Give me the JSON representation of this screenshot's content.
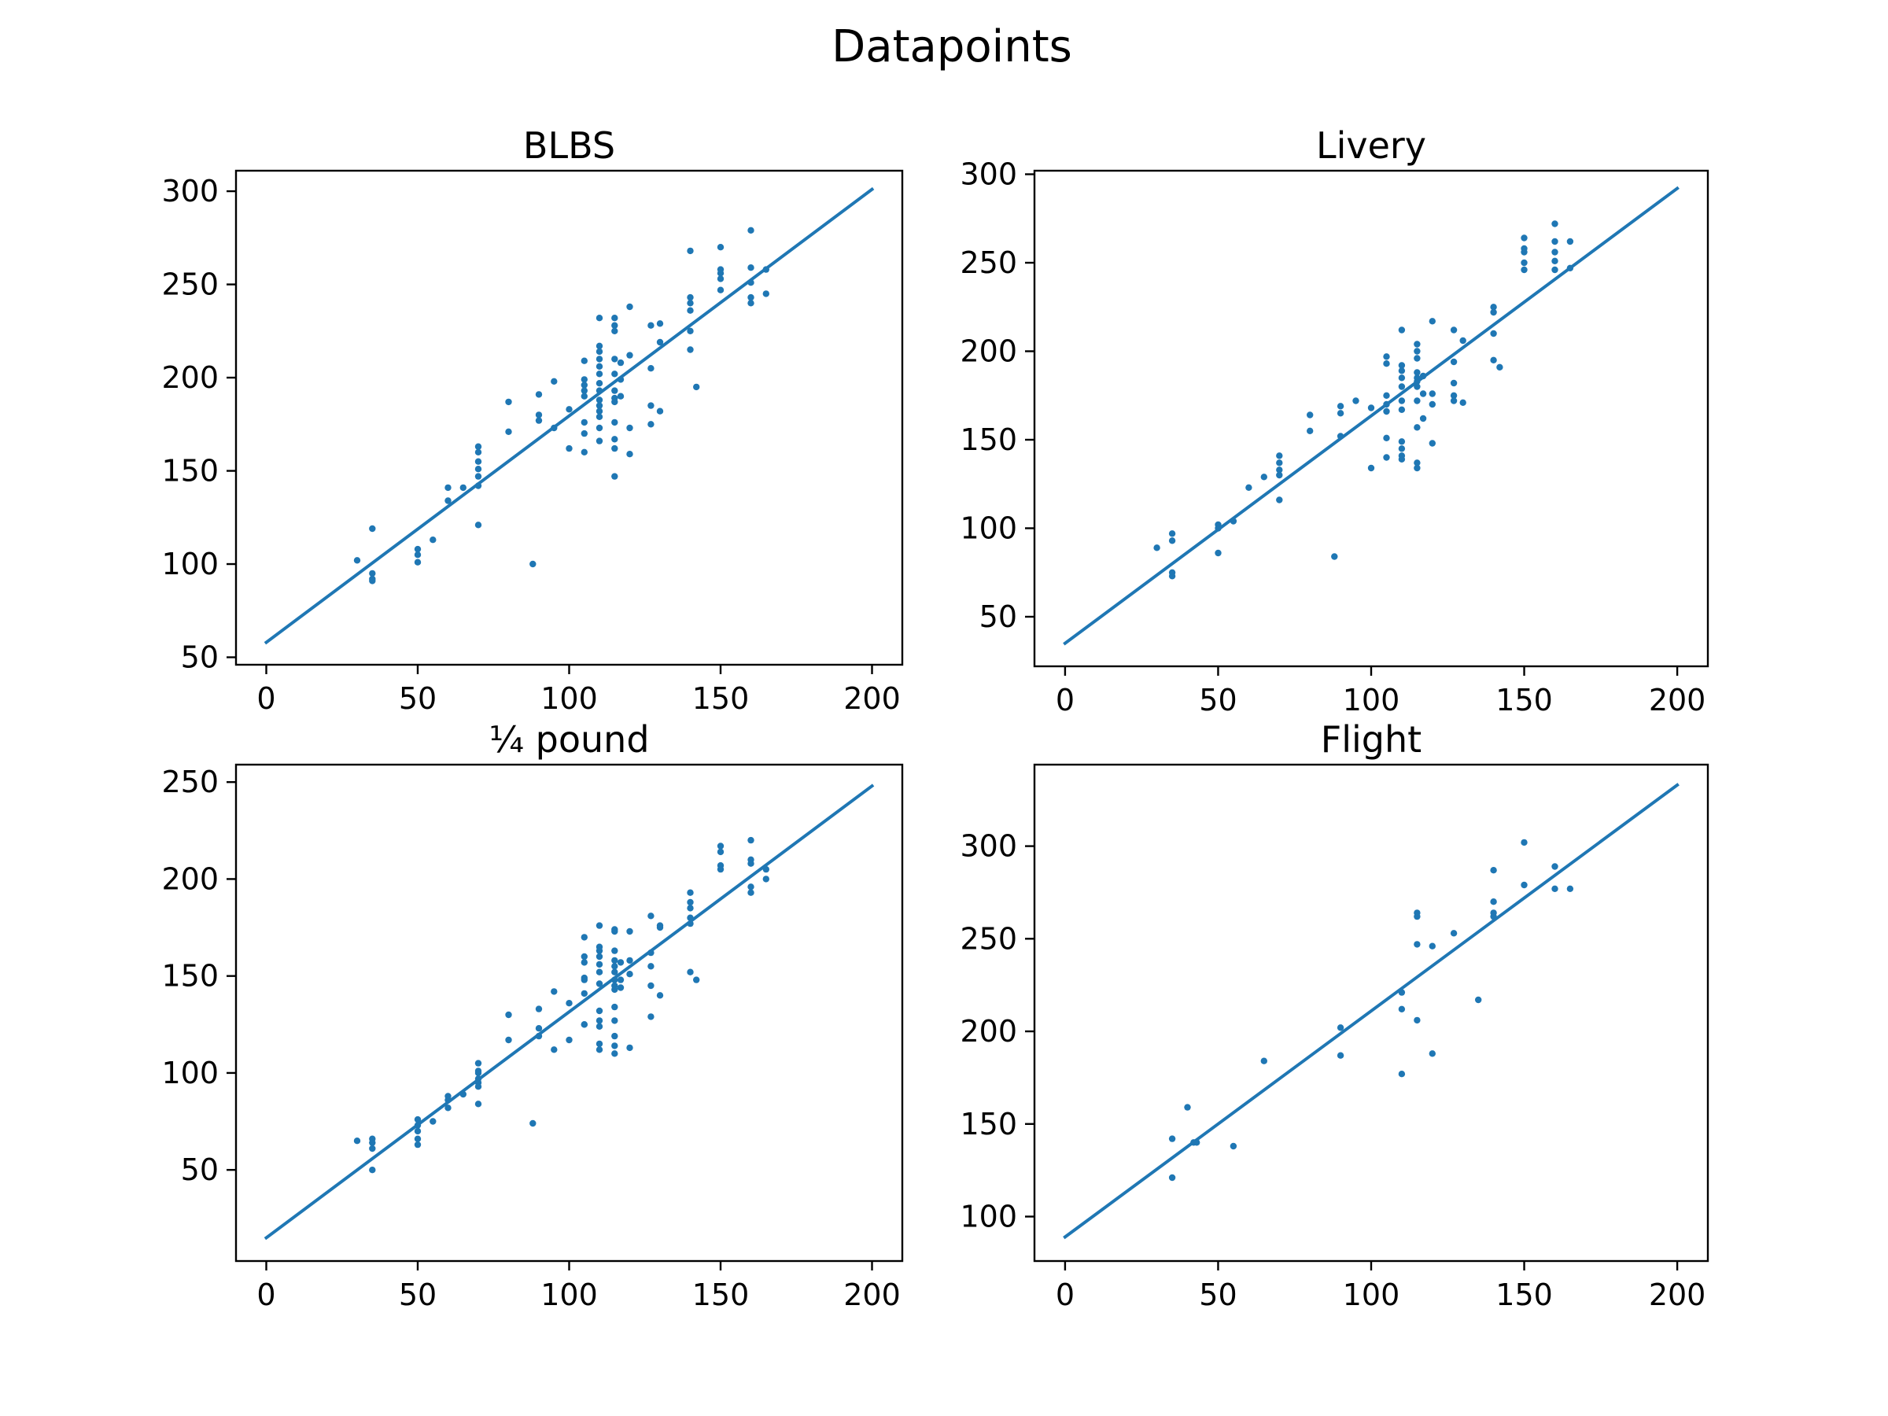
{
  "figure": {
    "title": "Datapoints",
    "marker_color": "#1f77b4",
    "line_color": "#1f77b4"
  },
  "chart_data": [
    {
      "type": "scatter",
      "title": "BLBS",
      "xlabel": "",
      "ylabel": "",
      "xlim": [
        -10,
        210
      ],
      "ylim": [
        46,
        311
      ],
      "xticks": [
        0,
        50,
        100,
        150,
        200
      ],
      "yticks": [
        50,
        100,
        150,
        200,
        250,
        300
      ],
      "grid": false,
      "fit_line": {
        "x": [
          0,
          200
        ],
        "y": [
          58,
          301
        ]
      },
      "points": [
        [
          30,
          102
        ],
        [
          35,
          119
        ],
        [
          35,
          95
        ],
        [
          35,
          92
        ],
        [
          35,
          91
        ],
        [
          50,
          108
        ],
        [
          50,
          105
        ],
        [
          50,
          101
        ],
        [
          55,
          113
        ],
        [
          60,
          141
        ],
        [
          60,
          134
        ],
        [
          65,
          141
        ],
        [
          70,
          163
        ],
        [
          70,
          160
        ],
        [
          70,
          155
        ],
        [
          70,
          151
        ],
        [
          70,
          147
        ],
        [
          70,
          142
        ],
        [
          70,
          121
        ],
        [
          80,
          187
        ],
        [
          80,
          171
        ],
        [
          88,
          100
        ],
        [
          90,
          191
        ],
        [
          90,
          180
        ],
        [
          90,
          177
        ],
        [
          95,
          198
        ],
        [
          95,
          173
        ],
        [
          100,
          183
        ],
        [
          100,
          162
        ],
        [
          105,
          209
        ],
        [
          105,
          199
        ],
        [
          105,
          196
        ],
        [
          105,
          193
        ],
        [
          105,
          190
        ],
        [
          105,
          176
        ],
        [
          105,
          170
        ],
        [
          105,
          160
        ],
        [
          110,
          232
        ],
        [
          110,
          217
        ],
        [
          110,
          214
        ],
        [
          110,
          210
        ],
        [
          110,
          206
        ],
        [
          110,
          202
        ],
        [
          110,
          197
        ],
        [
          110,
          193
        ],
        [
          110,
          188
        ],
        [
          110,
          185
        ],
        [
          110,
          182
        ],
        [
          110,
          179
        ],
        [
          110,
          173
        ],
        [
          110,
          166
        ],
        [
          115,
          232
        ],
        [
          115,
          228
        ],
        [
          115,
          225
        ],
        [
          115,
          210
        ],
        [
          115,
          202
        ],
        [
          115,
          193
        ],
        [
          115,
          189
        ],
        [
          115,
          187
        ],
        [
          115,
          176
        ],
        [
          115,
          167
        ],
        [
          115,
          162
        ],
        [
          115,
          147
        ],
        [
          117,
          208
        ],
        [
          117,
          199
        ],
        [
          117,
          190
        ],
        [
          120,
          238
        ],
        [
          120,
          212
        ],
        [
          120,
          173
        ],
        [
          120,
          159
        ],
        [
          127,
          228
        ],
        [
          127,
          205
        ],
        [
          127,
          185
        ],
        [
          127,
          175
        ],
        [
          130,
          229
        ],
        [
          130,
          219
        ],
        [
          130,
          182
        ],
        [
          140,
          268
        ],
        [
          140,
          243
        ],
        [
          140,
          240
        ],
        [
          140,
          236
        ],
        [
          140,
          225
        ],
        [
          140,
          215
        ],
        [
          142,
          195
        ],
        [
          150,
          270
        ],
        [
          150,
          258
        ],
        [
          150,
          256
        ],
        [
          150,
          253
        ],
        [
          150,
          247
        ],
        [
          160,
          279
        ],
        [
          160,
          259
        ],
        [
          160,
          251
        ],
        [
          160,
          243
        ],
        [
          160,
          240
        ],
        [
          165,
          258
        ],
        [
          165,
          245
        ]
      ]
    },
    {
      "type": "scatter",
      "title": "Livery",
      "xlabel": "",
      "ylabel": "",
      "xlim": [
        -10,
        210
      ],
      "ylim": [
        22,
        302
      ],
      "xticks": [
        0,
        50,
        100,
        150,
        200
      ],
      "yticks": [
        50,
        100,
        150,
        200,
        250,
        300
      ],
      "grid": false,
      "fit_line": {
        "x": [
          0,
          200
        ],
        "y": [
          35,
          292
        ]
      },
      "points": [
        [
          30,
          89
        ],
        [
          35,
          97
        ],
        [
          35,
          93
        ],
        [
          35,
          75
        ],
        [
          35,
          73
        ],
        [
          50,
          102
        ],
        [
          50,
          100
        ],
        [
          50,
          86
        ],
        [
          55,
          104
        ],
        [
          60,
          123
        ],
        [
          65,
          129
        ],
        [
          70,
          141
        ],
        [
          70,
          137
        ],
        [
          70,
          133
        ],
        [
          70,
          130
        ],
        [
          70,
          116
        ],
        [
          80,
          164
        ],
        [
          80,
          155
        ],
        [
          88,
          84
        ],
        [
          90,
          169
        ],
        [
          90,
          165
        ],
        [
          90,
          152
        ],
        [
          95,
          172
        ],
        [
          100,
          168
        ],
        [
          100,
          134
        ],
        [
          105,
          197
        ],
        [
          105,
          193
        ],
        [
          105,
          175
        ],
        [
          105,
          170
        ],
        [
          105,
          166
        ],
        [
          105,
          151
        ],
        [
          105,
          140
        ],
        [
          110,
          212
        ],
        [
          110,
          192
        ],
        [
          110,
          189
        ],
        [
          110,
          185
        ],
        [
          110,
          180
        ],
        [
          110,
          172
        ],
        [
          110,
          167
        ],
        [
          110,
          149
        ],
        [
          110,
          145
        ],
        [
          110,
          141
        ],
        [
          110,
          139
        ],
        [
          115,
          204
        ],
        [
          115,
          200
        ],
        [
          115,
          196
        ],
        [
          115,
          188
        ],
        [
          115,
          185
        ],
        [
          115,
          183
        ],
        [
          115,
          180
        ],
        [
          115,
          172
        ],
        [
          115,
          157
        ],
        [
          115,
          137
        ],
        [
          115,
          134
        ],
        [
          117,
          186
        ],
        [
          117,
          176
        ],
        [
          117,
          162
        ],
        [
          120,
          217
        ],
        [
          120,
          176
        ],
        [
          120,
          170
        ],
        [
          120,
          148
        ],
        [
          127,
          212
        ],
        [
          127,
          194
        ],
        [
          127,
          182
        ],
        [
          127,
          175
        ],
        [
          127,
          172
        ],
        [
          130,
          206
        ],
        [
          130,
          171
        ],
        [
          140,
          225
        ],
        [
          140,
          222
        ],
        [
          140,
          210
        ],
        [
          140,
          195
        ],
        [
          142,
          191
        ],
        [
          150,
          264
        ],
        [
          150,
          258
        ],
        [
          150,
          256
        ],
        [
          150,
          250
        ],
        [
          150,
          246
        ],
        [
          160,
          272
        ],
        [
          160,
          262
        ],
        [
          160,
          256
        ],
        [
          160,
          251
        ],
        [
          160,
          246
        ],
        [
          165,
          262
        ],
        [
          165,
          247
        ]
      ]
    },
    {
      "type": "scatter",
      "title": "¼ pound",
      "xlabel": "",
      "ylabel": "",
      "xlim": [
        -10,
        210
      ],
      "ylim": [
        3,
        259
      ],
      "xticks": [
        0,
        50,
        100,
        150,
        200
      ],
      "yticks": [
        50,
        100,
        150,
        200,
        250
      ],
      "grid": false,
      "fit_line": {
        "x": [
          0,
          200
        ],
        "y": [
          15,
          248
        ]
      },
      "points": [
        [
          30,
          65
        ],
        [
          35,
          66
        ],
        [
          35,
          64
        ],
        [
          35,
          61
        ],
        [
          35,
          50
        ],
        [
          50,
          76
        ],
        [
          50,
          73
        ],
        [
          50,
          70
        ],
        [
          50,
          66
        ],
        [
          50,
          63
        ],
        [
          55,
          75
        ],
        [
          60,
          88
        ],
        [
          60,
          86
        ],
        [
          60,
          82
        ],
        [
          65,
          89
        ],
        [
          70,
          105
        ],
        [
          70,
          101
        ],
        [
          70,
          100
        ],
        [
          70,
          97
        ],
        [
          70,
          95
        ],
        [
          70,
          93
        ],
        [
          70,
          84
        ],
        [
          80,
          130
        ],
        [
          80,
          117
        ],
        [
          88,
          74
        ],
        [
          90,
          133
        ],
        [
          90,
          123
        ],
        [
          90,
          119
        ],
        [
          95,
          142
        ],
        [
          95,
          112
        ],
        [
          100,
          136
        ],
        [
          100,
          117
        ],
        [
          105,
          170
        ],
        [
          105,
          160
        ],
        [
          105,
          157
        ],
        [
          105,
          149
        ],
        [
          105,
          148
        ],
        [
          105,
          141
        ],
        [
          105,
          125
        ],
        [
          105,
          125
        ],
        [
          110,
          176
        ],
        [
          110,
          165
        ],
        [
          110,
          163
        ],
        [
          110,
          160
        ],
        [
          110,
          156
        ],
        [
          110,
          152
        ],
        [
          110,
          146
        ],
        [
          110,
          132
        ],
        [
          110,
          127
        ],
        [
          110,
          124
        ],
        [
          110,
          115
        ],
        [
          110,
          112
        ],
        [
          115,
          174
        ],
        [
          115,
          173
        ],
        [
          115,
          163
        ],
        [
          115,
          158
        ],
        [
          115,
          155
        ],
        [
          115,
          152
        ],
        [
          115,
          148
        ],
        [
          115,
          145
        ],
        [
          115,
          143
        ],
        [
          115,
          134
        ],
        [
          115,
          127
        ],
        [
          115,
          119
        ],
        [
          115,
          114
        ],
        [
          115,
          110
        ],
        [
          117,
          157
        ],
        [
          117,
          148
        ],
        [
          117,
          144
        ],
        [
          120,
          173
        ],
        [
          120,
          158
        ],
        [
          120,
          151
        ],
        [
          120,
          113
        ],
        [
          127,
          181
        ],
        [
          127,
          162
        ],
        [
          127,
          155
        ],
        [
          127,
          145
        ],
        [
          127,
          129
        ],
        [
          130,
          176
        ],
        [
          130,
          175
        ],
        [
          130,
          140
        ],
        [
          140,
          193
        ],
        [
          140,
          188
        ],
        [
          140,
          185
        ],
        [
          140,
          180
        ],
        [
          140,
          177
        ],
        [
          140,
          152
        ],
        [
          142,
          148
        ],
        [
          150,
          217
        ],
        [
          150,
          214
        ],
        [
          150,
          207
        ],
        [
          150,
          205
        ],
        [
          160,
          220
        ],
        [
          160,
          210
        ],
        [
          160,
          208
        ],
        [
          160,
          196
        ],
        [
          160,
          193
        ],
        [
          165,
          205
        ],
        [
          165,
          200
        ]
      ]
    },
    {
      "type": "scatter",
      "title": "Flight",
      "xlabel": "",
      "ylabel": "",
      "xlim": [
        -10,
        210
      ],
      "ylim": [
        76,
        344
      ],
      "xticks": [
        0,
        50,
        100,
        150,
        200
      ],
      "yticks": [
        100,
        150,
        200,
        250,
        300
      ],
      "grid": false,
      "fit_line": {
        "x": [
          0,
          200
        ],
        "y": [
          89,
          333
        ]
      },
      "points": [
        [
          35,
          142
        ],
        [
          35,
          121
        ],
        [
          40,
          159
        ],
        [
          42,
          140
        ],
        [
          43,
          140
        ],
        [
          55,
          138
        ],
        [
          65,
          184
        ],
        [
          90,
          202
        ],
        [
          90,
          187
        ],
        [
          110,
          221
        ],
        [
          110,
          212
        ],
        [
          110,
          177
        ],
        [
          115,
          264
        ],
        [
          115,
          262
        ],
        [
          115,
          247
        ],
        [
          115,
          206
        ],
        [
          120,
          246
        ],
        [
          120,
          188
        ],
        [
          127,
          253
        ],
        [
          135,
          217
        ],
        [
          140,
          287
        ],
        [
          140,
          270
        ],
        [
          140,
          264
        ],
        [
          140,
          262
        ],
        [
          150,
          302
        ],
        [
          150,
          279
        ],
        [
          160,
          289
        ],
        [
          160,
          277
        ],
        [
          165,
          277
        ]
      ]
    }
  ]
}
